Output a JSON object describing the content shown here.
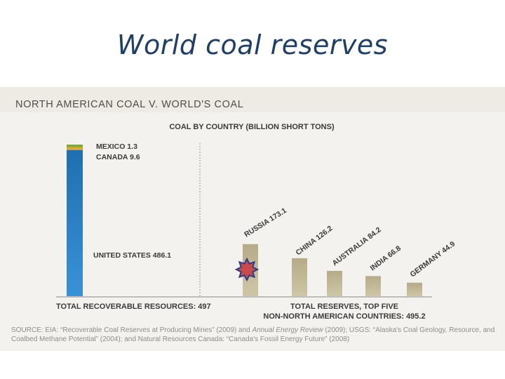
{
  "slide": {
    "title": "World coal reserves"
  },
  "panel": {
    "header": "NORTH AMERICAN COAL V. WORLD'S COAL",
    "source_prefix": "SOURCE: EIA: “Recoverable Coal Reserves at Producing Mines” (2009) and ",
    "source_em": "Annual Energy Review",
    "source_suffix": " (2009); USGS: “Alaska's Coal Geology, Resource, and Coalbed Methane Potential” (2004); and Natural Resources Canada: “Canada's Fossil Energy Future” (2008)"
  },
  "colors": {
    "us": "#1f6fb0",
    "us_light": "#3a92d6",
    "canada": "#e0a92a",
    "mexico": "#7aa640",
    "world_bar": "#cfc6a6",
    "world_bar_dark": "#b5ab88",
    "axis": "#8a8a8a",
    "label": "#3a3a3a",
    "star": "#2e3a8c",
    "star_fill": "#c94a4a"
  },
  "chart_data": {
    "type": "bar",
    "title": "COAL BY COUNTRY (BILLION SHORT TONS)",
    "unit": "billion short tons",
    "north_america": {
      "stack": [
        {
          "name": "UNITED STATES",
          "value": 486.1,
          "label": "UNITED STATES 486.1"
        },
        {
          "name": "CANADA",
          "value": 9.6,
          "label": "CANADA 9.6"
        },
        {
          "name": "MEXICO",
          "value": 1.3,
          "label": "MEXICO 1.3"
        }
      ],
      "total_label": "TOTAL RECOVERABLE RESOURCES: 497"
    },
    "world": {
      "categories": [
        "RUSSIA",
        "CHINA",
        "AUSTRALIA",
        "INDIA",
        "GERMANY"
      ],
      "values": [
        173.1,
        126.2,
        84.2,
        66.8,
        44.9
      ],
      "labels": [
        "RUSSIA 173.1",
        "CHINA 126.2",
        "AUSTRALIA 84.2",
        "INDIA 66.8",
        "GERMANY 44.9"
      ],
      "total_label_line1": "TOTAL RESERVES, TOP FIVE",
      "total_label_line2": "NON-NORTH AMERICAN COUNTRIES: 495.2"
    },
    "ylim": [
      0,
      497
    ],
    "grid": false,
    "legend": "none"
  }
}
